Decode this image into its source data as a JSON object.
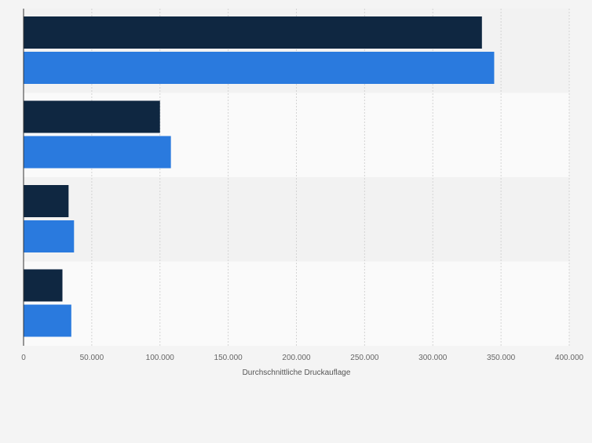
{
  "chart_data": {
    "type": "bar",
    "orientation": "horizontal",
    "categories": [
      "",
      "",
      "",
      ""
    ],
    "series": [
      {
        "values": [
          336000,
          100000,
          33000,
          28500
        ],
        "color": "#0f2741"
      },
      {
        "values": [
          345000,
          108000,
          37000,
          35000
        ],
        "color": "#2a7ade"
      }
    ],
    "xlabel": "Durchschnittliche Druckauflage",
    "ylabel": "",
    "xlim": [
      0,
      400000
    ],
    "xticks": [
      0,
      50000,
      100000,
      150000,
      200000,
      250000,
      300000,
      350000,
      400000
    ],
    "xtick_labels": [
      "0",
      "50.000",
      "100.000",
      "150.000",
      "200.000",
      "250.000",
      "300.000",
      "350.000",
      "400.000"
    ],
    "grid": true,
    "legend": "none",
    "band_colors": [
      "#f2f2f2",
      "#fafafa"
    ]
  }
}
